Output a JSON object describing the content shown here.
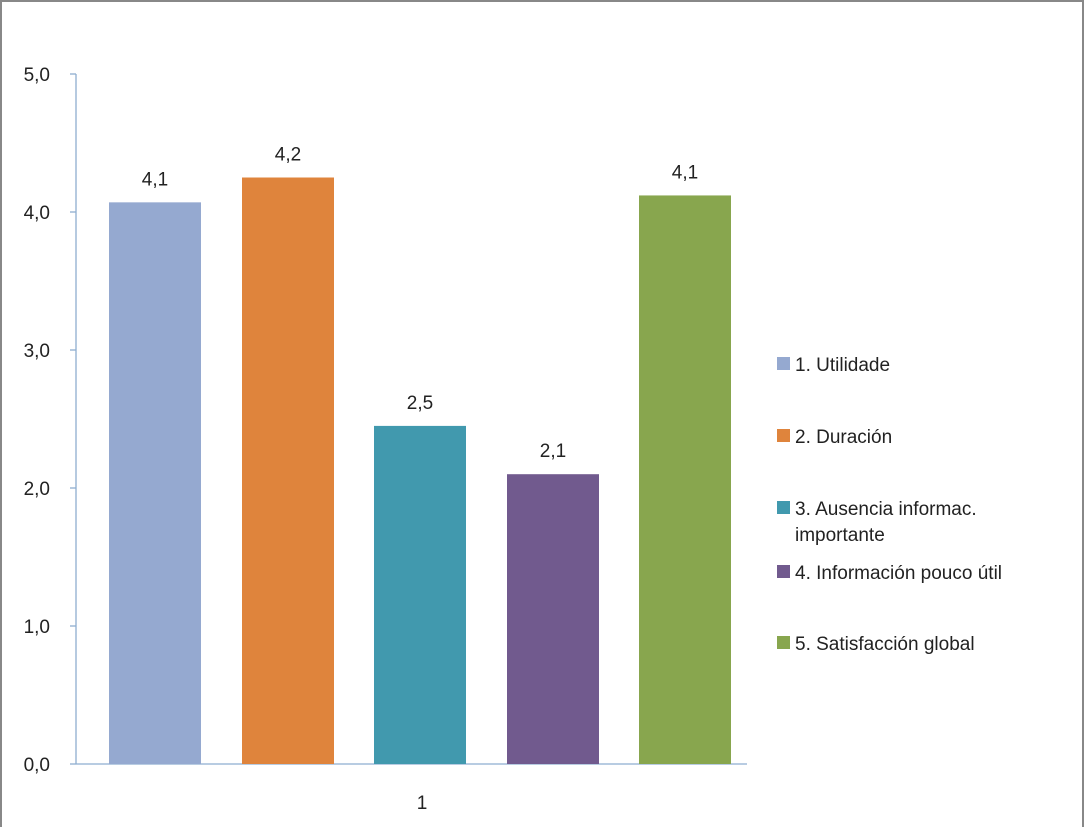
{
  "chart_data": {
    "type": "bar",
    "categories": [
      "1"
    ],
    "ylim": [
      0,
      5
    ],
    "yticks": [
      "0,0",
      "1,0",
      "2,0",
      "3,0",
      "4,0",
      "5,0"
    ],
    "grid": false,
    "legend_position": "right",
    "series": [
      {
        "name": "1. Utilidade",
        "value": 4.07,
        "label": "4,1",
        "color": "#95a9d0"
      },
      {
        "name": "2. Duración",
        "value": 4.25,
        "label": "4,2",
        "color": "#df843c"
      },
      {
        "name": "3. Ausencia informac. importante",
        "legend_lines": [
          "3. Ausencia informac.",
          "importante"
        ],
        "value": 2.45,
        "label": "2,5",
        "color": "#4199ae"
      },
      {
        "name": "4. Información pouco útil",
        "value": 2.1,
        "label": "2,1",
        "color": "#715a8e"
      },
      {
        "name": "5. Satisfacción global",
        "value": 4.12,
        "label": "4,1",
        "color": "#88a64e"
      }
    ]
  }
}
